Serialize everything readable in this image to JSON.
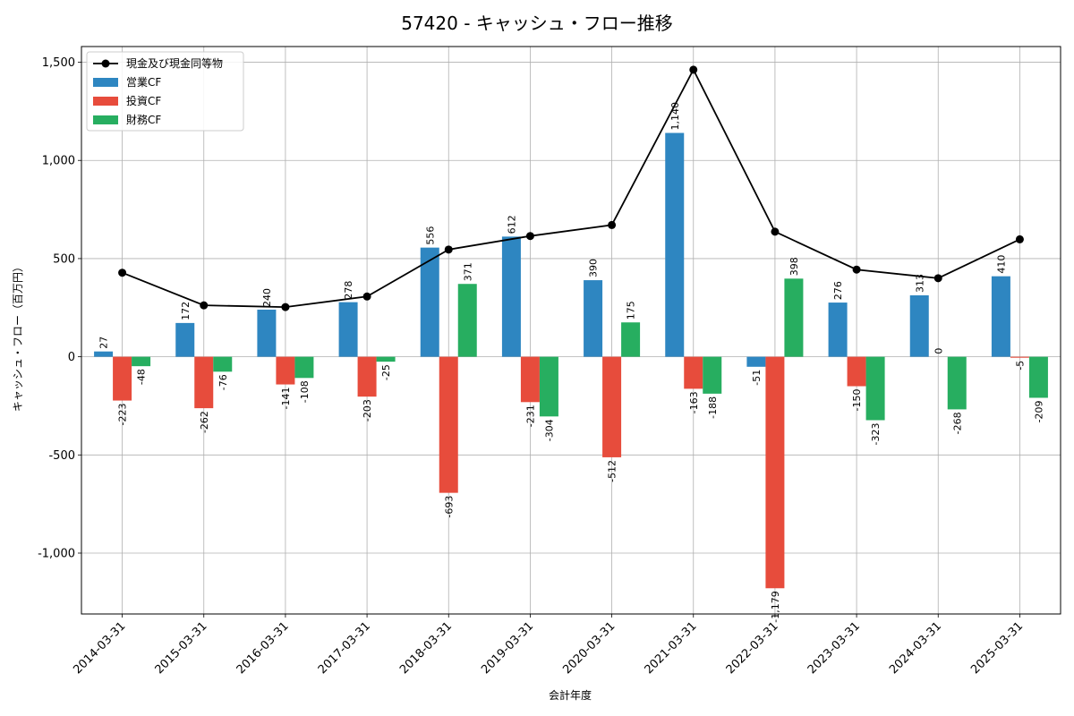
{
  "chart_data": {
    "type": "bar",
    "title": "57420 - キャッシュ・フロー推移",
    "xlabel": "会計年度",
    "ylabel": "キャッシュ・フロー（百万円）",
    "ylim": [
      -1310,
      1580
    ],
    "yticks": [
      -1000,
      -500,
      0,
      500,
      1000,
      1500
    ],
    "ytick_labels": [
      "-1,000",
      "-500",
      "0",
      "500",
      "1,000",
      "1,500"
    ],
    "grid": true,
    "legend_position": "top-left",
    "categories": [
      "2014-03-31",
      "2015-03-31",
      "2016-03-31",
      "2017-03-31",
      "2018-03-31",
      "2019-03-31",
      "2020-03-31",
      "2021-03-31",
      "2022-03-31",
      "2023-03-31",
      "2024-03-31",
      "2025-03-31"
    ],
    "series": [
      {
        "name": "営業CF",
        "kind": "bar",
        "color": "#2e86c1",
        "values": [
          27,
          172,
          240,
          278,
          556,
          612,
          390,
          1140,
          -51,
          276,
          313,
          410
        ],
        "labels": [
          "27",
          "172",
          "240",
          "278",
          "556",
          "612",
          "390",
          "1,140",
          "-51",
          "276",
          "313",
          "410"
        ]
      },
      {
        "name": "投資CF",
        "kind": "bar",
        "color": "#e74c3c",
        "values": [
          -223,
          -262,
          -141,
          -203,
          -693,
          -231,
          -512,
          -163,
          -1179,
          -150,
          0,
          -5
        ],
        "labels": [
          "-223",
          "-262",
          "-141",
          "-203",
          "-693",
          "-231",
          "-512",
          "-163",
          "-1,179",
          "-150",
          "0",
          "-5"
        ]
      },
      {
        "name": "財務CF",
        "kind": "bar",
        "color": "#27ae60",
        "values": [
          -48,
          -76,
          -108,
          -25,
          371,
          -304,
          175,
          -188,
          398,
          -323,
          -268,
          -209
        ],
        "labels": [
          "-48",
          "-76",
          "-108",
          "-25",
          "371",
          "-304",
          "175",
          "-188",
          "398",
          "-323",
          "-268",
          "-209"
        ]
      },
      {
        "name": "現金及び現金同等物",
        "kind": "line",
        "color": "#000000",
        "values": [
          428,
          262,
          253,
          307,
          546,
          615,
          671,
          1462,
          637,
          444,
          400,
          598
        ]
      }
    ]
  }
}
